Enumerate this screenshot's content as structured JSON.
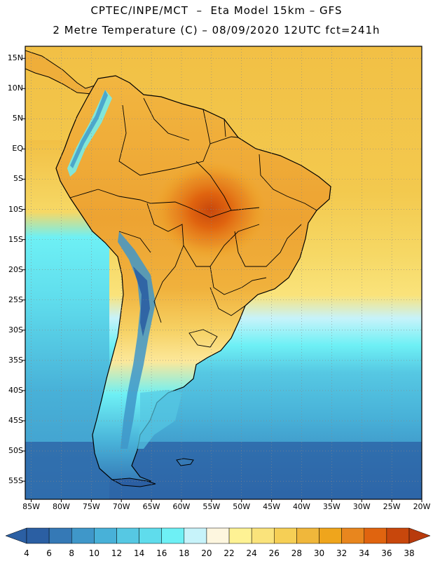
{
  "header": {
    "line1": "CPTEC/INPE/MCT  –  Eta Model 15km – GFS",
    "line2": "2 Metre Temperature (C) – 08/09/2020 12UTC fct=241h"
  },
  "axes": {
    "lat_labels": [
      "15N",
      "10N",
      "5N",
      "EQ",
      "5S",
      "10S",
      "15S",
      "20S",
      "25S",
      "30S",
      "35S",
      "40S",
      "45S",
      "50S",
      "55S"
    ],
    "lon_labels": [
      "85W",
      "80W",
      "75W",
      "70W",
      "65W",
      "60W",
      "55W",
      "50W",
      "45W",
      "40W",
      "35W",
      "30W",
      "25W",
      "20W"
    ]
  },
  "colorbar": {
    "levels": [
      "4",
      "6",
      "8",
      "10",
      "12",
      "14",
      "16",
      "18",
      "20",
      "22",
      "24",
      "26",
      "28",
      "30",
      "32",
      "34",
      "36",
      "38"
    ],
    "colors": [
      "#2b5fa3",
      "#3579b6",
      "#3f97c9",
      "#48b1d8",
      "#56c8e3",
      "#5fdcec",
      "#6ef0f5",
      "#c7f3fa",
      "#fdf6df",
      "#fef294",
      "#fae37b",
      "#f6cf55",
      "#f0b73b",
      "#efa51c",
      "#e8861e",
      "#e0640f",
      "#c8470c",
      "#a93a0a",
      "#b83a0c"
    ]
  }
}
